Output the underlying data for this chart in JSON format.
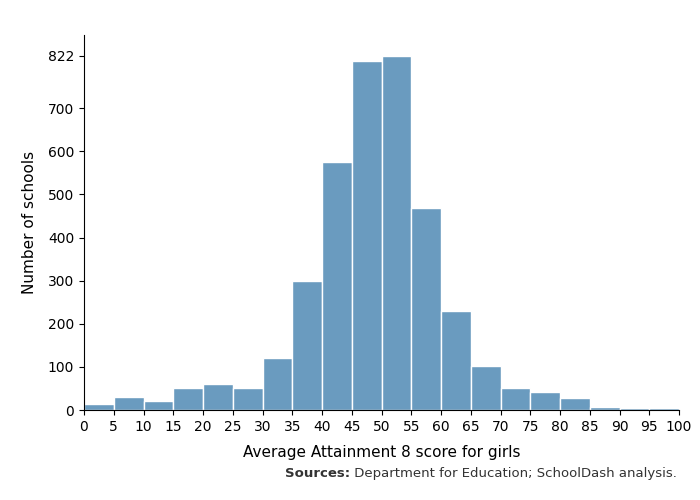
{
  "bin_edges": [
    0,
    5,
    10,
    15,
    20,
    25,
    30,
    35,
    40,
    45,
    50,
    55,
    60,
    65,
    70,
    75,
    80,
    85,
    90,
    95,
    100
  ],
  "counts": [
    15,
    30,
    22,
    50,
    60,
    52,
    120,
    300,
    575,
    810,
    822,
    468,
    230,
    102,
    52,
    42,
    27,
    8,
    4,
    4
  ],
  "bar_color": "#6a9bbf",
  "bar_edge_color": "#ffffff",
  "xlabel": "Average Attainment 8 score for girls",
  "ylabel": "Number of schools",
  "xlim": [
    0,
    100
  ],
  "ylim": [
    0,
    870
  ],
  "yticks": [
    0,
    100,
    200,
    300,
    400,
    500,
    600,
    700,
    822
  ],
  "xticks": [
    0,
    5,
    10,
    15,
    20,
    25,
    30,
    35,
    40,
    45,
    50,
    55,
    60,
    65,
    70,
    75,
    80,
    85,
    90,
    95,
    100
  ],
  "source_text_bold": "Sources:",
  "source_text_regular": " Department for Education; SchoolDash analysis.",
  "xlabel_fontsize": 11,
  "ylabel_fontsize": 11,
  "tick_fontsize": 10,
  "source_fontsize": 9.5,
  "background_color": "#ffffff"
}
